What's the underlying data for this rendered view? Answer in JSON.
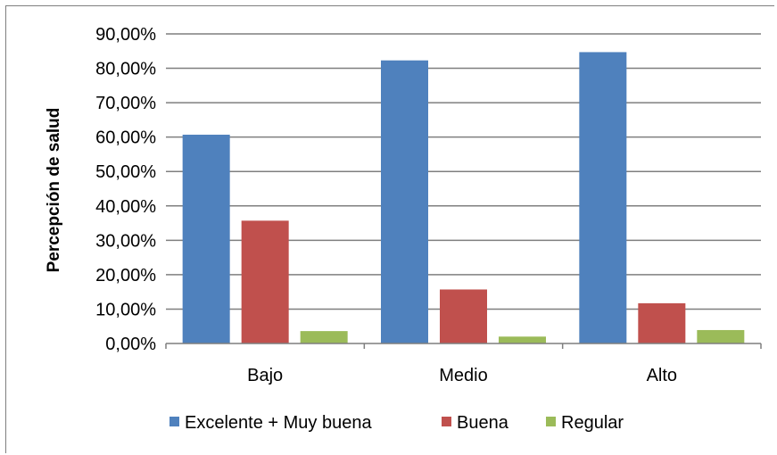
{
  "chart_data": {
    "type": "bar",
    "title": "",
    "xlabel": "",
    "ylabel": "Percepción de salud",
    "ylim": [
      0,
      90
    ],
    "y_tick_values": [
      0,
      10,
      20,
      30,
      40,
      50,
      60,
      70,
      80,
      90
    ],
    "y_tick_labels": [
      "0,00%",
      "10,00%",
      "20,00%",
      "30,00%",
      "40,00%",
      "50,00%",
      "60,00%",
      "70,00%",
      "80,00%",
      "90,00%"
    ],
    "grid": true,
    "legend_position": "bottom",
    "categories": [
      "Bajo",
      "Medio",
      "Alto"
    ],
    "series": [
      {
        "name": "Excelente + Muy buena",
        "color": "#4f81bd",
        "values": [
          60.7,
          82.3,
          84.7
        ]
      },
      {
        "name": "Buena",
        "color": "#c0504d",
        "values": [
          35.7,
          15.7,
          11.7
        ]
      },
      {
        "name": "Regular",
        "color": "#9bbb59",
        "values": [
          3.6,
          2.0,
          3.9
        ]
      }
    ]
  }
}
